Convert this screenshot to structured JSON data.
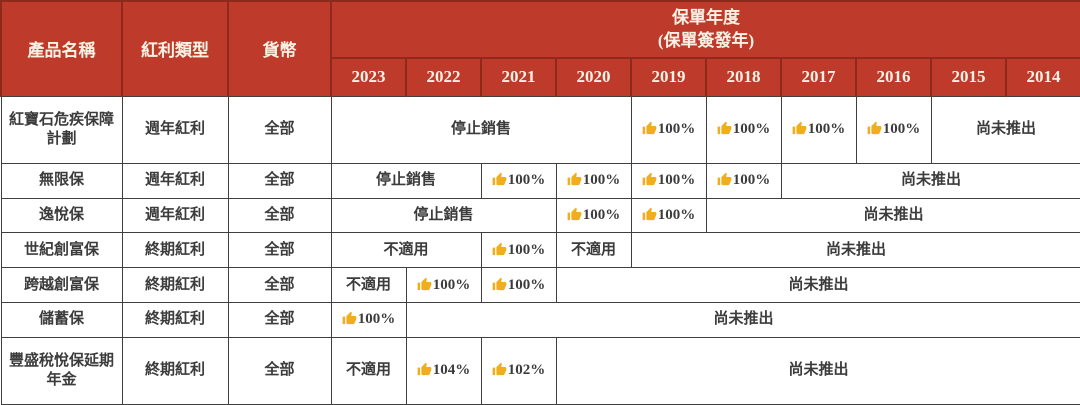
{
  "palette": {
    "header_bg": "#be3b2c",
    "header_text": "#faf2e4",
    "header_border": "#8c2a1b",
    "grid_line": "#3f3f3f",
    "body_text": "#3c3c3c",
    "percent_text": "#d8141a",
    "thumb_gold": "#f0ae1c",
    "page_bg": "#ffffff"
  },
  "icons": {
    "fulfilled_icon": "thumbs-up",
    "fulfilled_glyph": "👍"
  },
  "table": {
    "columns": {
      "product": "產品名稱",
      "dividend_type": "紅利類型",
      "currency": "貨幣"
    },
    "year_group": {
      "title_line1": "保單年度",
      "title_line2": "(保單簽發年)",
      "years": [
        "2023",
        "2022",
        "2021",
        "2020",
        "2019",
        "2018",
        "2017",
        "2016",
        "2015",
        "2014"
      ]
    },
    "rows": [
      {
        "product": "紅寶石危疾保障計劃",
        "dividend_type": "週年紅利",
        "currency": "全部",
        "cells": [
          {
            "text": "停止銷售",
            "span": 4,
            "kind": "plain"
          },
          {
            "text": "100%",
            "span": 1,
            "kind": "percent"
          },
          {
            "text": "100%",
            "span": 1,
            "kind": "percent"
          },
          {
            "text": "100%",
            "span": 1,
            "kind": "percent"
          },
          {
            "text": "100%",
            "span": 1,
            "kind": "percent"
          },
          {
            "text": "尚未推出",
            "span": 2,
            "kind": "plain"
          }
        ]
      },
      {
        "product": "無限保",
        "dividend_type": "週年紅利",
        "currency": "全部",
        "cells": [
          {
            "text": "停止銷售",
            "span": 2,
            "kind": "plain"
          },
          {
            "text": "100%",
            "span": 1,
            "kind": "percent"
          },
          {
            "text": "100%",
            "span": 1,
            "kind": "percent"
          },
          {
            "text": "100%",
            "span": 1,
            "kind": "percent"
          },
          {
            "text": "100%",
            "span": 1,
            "kind": "percent"
          },
          {
            "text": "尚未推出",
            "span": 4,
            "kind": "plain"
          }
        ]
      },
      {
        "product": "逸悅保",
        "dividend_type": "週年紅利",
        "currency": "全部",
        "cells": [
          {
            "text": "停止銷售",
            "span": 3,
            "kind": "plain"
          },
          {
            "text": "100%",
            "span": 1,
            "kind": "percent"
          },
          {
            "text": "100%",
            "span": 1,
            "kind": "percent"
          },
          {
            "text": "尚未推出",
            "span": 5,
            "kind": "plain"
          }
        ]
      },
      {
        "product": "世紀創富保",
        "dividend_type": "終期紅利",
        "currency": "全部",
        "cells": [
          {
            "text": "不適用",
            "span": 2,
            "kind": "plain"
          },
          {
            "text": "100%",
            "span": 1,
            "kind": "percent"
          },
          {
            "text": "不適用",
            "span": 1,
            "kind": "plain"
          },
          {
            "text": "尚未推出",
            "span": 6,
            "kind": "plain"
          }
        ]
      },
      {
        "product": "跨越創富保",
        "dividend_type": "終期紅利",
        "currency": "全部",
        "cells": [
          {
            "text": "不適用",
            "span": 1,
            "kind": "plain"
          },
          {
            "text": "100%",
            "span": 1,
            "kind": "percent"
          },
          {
            "text": "100%",
            "span": 1,
            "kind": "percent"
          },
          {
            "text": "尚未推出",
            "span": 7,
            "kind": "plain"
          }
        ]
      },
      {
        "product": "儲蓄保",
        "dividend_type": "終期紅利",
        "currency": "全部",
        "cells": [
          {
            "text": "100%",
            "span": 1,
            "kind": "percent"
          },
          {
            "text": "尚未推出",
            "span": 9,
            "kind": "plain"
          }
        ]
      },
      {
        "product": "豐盛稅悅保延期年金",
        "dividend_type": "終期紅利",
        "currency": "全部",
        "cells": [
          {
            "text": "不適用",
            "span": 1,
            "kind": "plain"
          },
          {
            "text": "104%",
            "span": 1,
            "kind": "percent"
          },
          {
            "text": "102%",
            "span": 1,
            "kind": "percent"
          },
          {
            "text": "尚未推出",
            "span": 7,
            "kind": "plain"
          }
        ]
      }
    ]
  }
}
